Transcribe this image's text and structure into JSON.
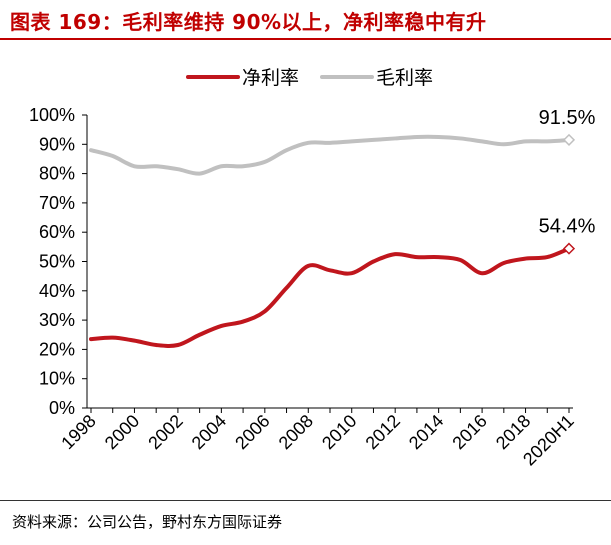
{
  "page": {
    "title": "图表 169：毛利率维持 90%以上，净利率稳中有升",
    "source": "资料来源：公司公告，野村东方国际证券"
  },
  "colors": {
    "net_margin": "#c0161d",
    "gross_margin": "#c0c0c0",
    "title": "#c00000"
  },
  "chart_data": {
    "type": "line",
    "title": "",
    "xlabel": "",
    "ylabel": "",
    "ylim": [
      0,
      100
    ],
    "yticks": [
      "0%",
      "10%",
      "20%",
      "30%",
      "40%",
      "50%",
      "60%",
      "70%",
      "80%",
      "90%",
      "100%"
    ],
    "x_tick_labels": [
      "1998",
      "2000",
      "2002",
      "2004",
      "2006",
      "2008",
      "2010",
      "2012",
      "2014",
      "2016",
      "2018",
      "2020H1"
    ],
    "categories": [
      "1998",
      "1999",
      "2000",
      "2001",
      "2002",
      "2003",
      "2004",
      "2005",
      "2006",
      "2007",
      "2008",
      "2009",
      "2010",
      "2011",
      "2012",
      "2013",
      "2014",
      "2015",
      "2016",
      "2017",
      "2018",
      "2019",
      "2020H1"
    ],
    "legend_position": "top",
    "series": [
      {
        "name": "净利率",
        "color": "#c0161d",
        "values": [
          23.5,
          24,
          23,
          21.5,
          21.5,
          25,
          28,
          29.5,
          33,
          41,
          48.5,
          47,
          46,
          50,
          52.5,
          51.5,
          51.5,
          50.5,
          46,
          49.5,
          51,
          51.5,
          54.4
        ],
        "end_label": "54.4%"
      },
      {
        "name": "毛利率",
        "color": "#c0c0c0",
        "values": [
          88,
          86,
          82.5,
          82.5,
          81.5,
          80,
          82.5,
          82.5,
          84,
          88,
          90.5,
          90.5,
          91,
          91.5,
          92,
          92.5,
          92.5,
          92,
          91,
          90,
          91,
          91,
          91.5
        ],
        "end_label": "91.5%"
      }
    ]
  }
}
